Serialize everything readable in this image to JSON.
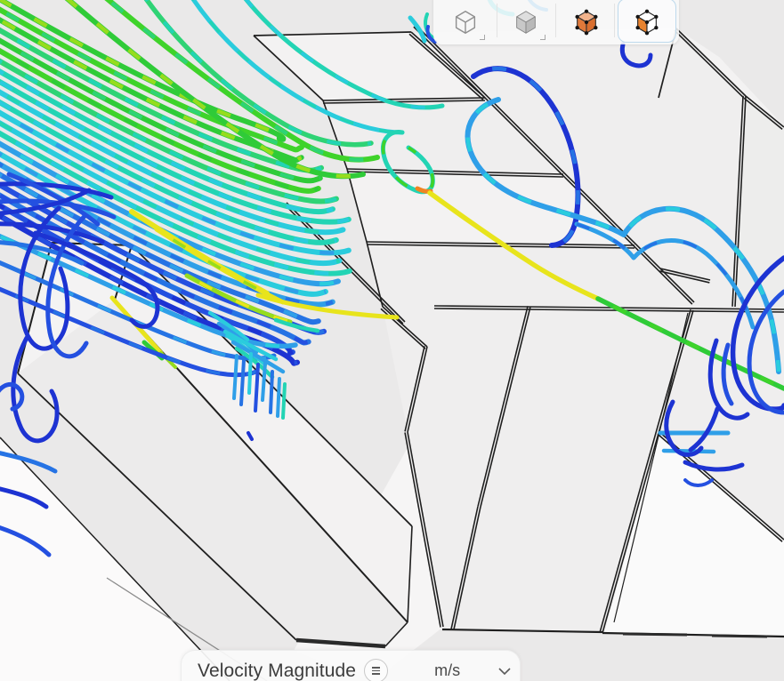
{
  "toolbar": {
    "buttons": [
      {
        "id": "wireframe-cube",
        "selected": false,
        "has_flyout": true
      },
      {
        "id": "shaded-cube",
        "selected": false,
        "has_flyout": true
      },
      {
        "id": "solid-orange-cube",
        "selected": false,
        "has_flyout": false
      },
      {
        "id": "orange-face-cube",
        "selected": true,
        "has_flyout": false
      }
    ],
    "selection_border_color": "#bdd9ec"
  },
  "bottom_bar": {
    "field_label": "Velocity Magnitude",
    "unit": "m/s",
    "menu_icon": "hamburger-circle-icon",
    "chevron_icon": "chevron-down-icon"
  },
  "palette": {
    "navy": "#1d33d2",
    "blue": "#2450e0",
    "medblue": "#2673e4",
    "skyblue": "#2f9fe8",
    "cyan": "#2accdd",
    "teal": "#23d4b4",
    "spring": "#2fd375",
    "green": "#2fcb38",
    "green2": "#3fd32a",
    "lime": "#96dc1e",
    "yellow": "#e8e41c",
    "orange": "#f08422",
    "edge": "#1f1f1f",
    "bg": "#eae9e9",
    "face": "#efeeee",
    "faceLight": "#f3f2f2",
    "white": "#fafafa"
  }
}
